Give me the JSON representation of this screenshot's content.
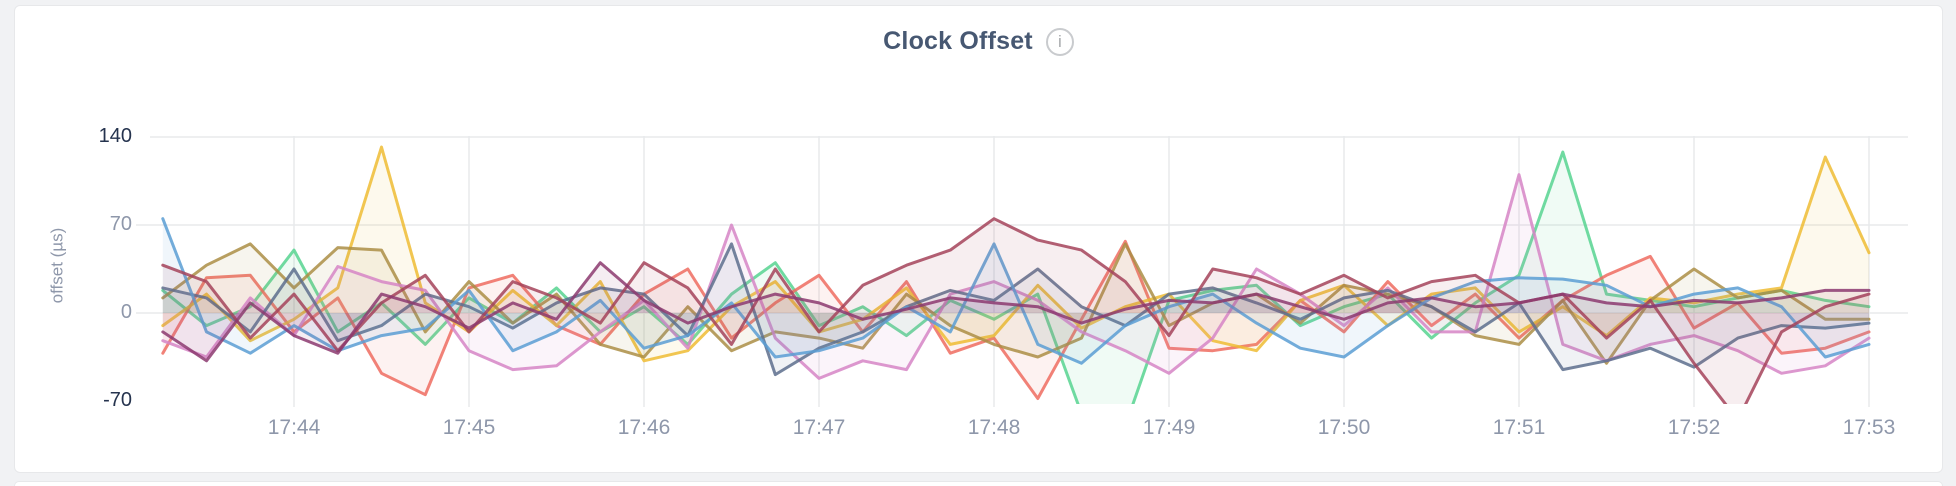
{
  "header": {
    "title": "Clock Offset",
    "info_glyph": "i"
  },
  "theme": {
    "page_bg": "#f1f2f4",
    "card_bg": "#ffffff",
    "card_border": "#e7e8ea",
    "title_color": "#475872",
    "axis_strong": "#25334e",
    "axis_weak": "#8e97aa",
    "grid_color": "#e8eaec",
    "icon_color": "#a7a9ac",
    "icon_border": "#c9cbce"
  },
  "chart_data": {
    "type": "line",
    "title": "Clock Offset",
    "xlabel": "",
    "ylabel": "offset (µs)",
    "y_ticks": [
      140,
      70,
      0,
      -70
    ],
    "ylim": [
      -70,
      140
    ],
    "x_tick_labels": [
      "17:44",
      "17:45",
      "17:46",
      "17:47",
      "17:48",
      "17:49",
      "17:50",
      "17:51",
      "17:52",
      "17:53"
    ],
    "x_unit": "minutes after 17:43",
    "grid": true,
    "legend": "none",
    "x": [
      0.25,
      0.5,
      0.75,
      1,
      1.25,
      1.5,
      1.75,
      2,
      2.25,
      2.5,
      2.75,
      3,
      3.25,
      3.5,
      3.75,
      4,
      4.25,
      4.5,
      4.75,
      5,
      5.25,
      5.5,
      5.75,
      6,
      6.25,
      6.5,
      6.75,
      7,
      7.25,
      7.5,
      7.75,
      8,
      8.25,
      8.5,
      8.75,
      9,
      9.25,
      9.5,
      9.75,
      10
    ],
    "series": [
      {
        "name": "green",
        "color": "#57d491",
        "values": [
          18,
          -10,
          5,
          50,
          -15,
          8,
          -25,
          12,
          -8,
          20,
          -15,
          5,
          -25,
          15,
          40,
          -10,
          5,
          -18,
          10,
          -5,
          15,
          -80,
          -90,
          10,
          18,
          22,
          -10,
          5,
          15,
          -20,
          8,
          30,
          128,
          15,
          10,
          5,
          12,
          18,
          10,
          5
        ]
      },
      {
        "name": "coral",
        "color": "#ee6c60",
        "values": [
          -32,
          28,
          30,
          -15,
          12,
          -48,
          -65,
          20,
          30,
          -10,
          -25,
          15,
          35,
          -20,
          8,
          30,
          -15,
          25,
          -32,
          -20,
          -68,
          -5,
          57,
          -28,
          -30,
          -25,
          10,
          -15,
          25,
          -10,
          15,
          -20,
          10,
          30,
          45,
          -12,
          8,
          -32,
          -28,
          -15
        ]
      },
      {
        "name": "gold",
        "color": "#eebc34",
        "values": [
          -10,
          15,
          -22,
          -5,
          20,
          132,
          8,
          -15,
          18,
          -10,
          25,
          -38,
          -30,
          5,
          25,
          -15,
          -5,
          20,
          -25,
          -18,
          22,
          -12,
          5,
          15,
          -22,
          -30,
          10,
          22,
          -10,
          15,
          20,
          -15,
          5,
          -18,
          12,
          8,
          15,
          20,
          124,
          48
        ]
      },
      {
        "name": "tan",
        "color": "#ab8e45",
        "values": [
          12,
          38,
          55,
          20,
          52,
          50,
          -15,
          25,
          -8,
          15,
          -25,
          -35,
          5,
          -30,
          -15,
          -20,
          -28,
          15,
          -10,
          -25,
          -35,
          -20,
          55,
          -10,
          8,
          15,
          -8,
          22,
          15,
          5,
          -18,
          -25,
          10,
          -40,
          10,
          35,
          12,
          18,
          -5,
          -5
        ]
      },
      {
        "name": "orchid",
        "color": "#d685c5",
        "values": [
          -22,
          -35,
          12,
          -18,
          37,
          25,
          18,
          -30,
          -45,
          -42,
          -15,
          10,
          -28,
          70,
          -20,
          -52,
          -38,
          -45,
          15,
          25,
          10,
          -15,
          -30,
          -48,
          -20,
          35,
          15,
          -10,
          20,
          -15,
          -15,
          110,
          -25,
          -38,
          -25,
          -18,
          -30,
          -48,
          -42,
          -20
        ]
      },
      {
        "name": "slate",
        "color": "#5d6f8d",
        "values": [
          20,
          12,
          -15,
          35,
          -22,
          -10,
          15,
          5,
          -12,
          8,
          20,
          15,
          -18,
          55,
          -49,
          -28,
          -15,
          5,
          18,
          10,
          35,
          5,
          -10,
          15,
          20,
          8,
          -5,
          12,
          18,
          5,
          -15,
          8,
          -45,
          -38,
          -28,
          -43,
          -20,
          -10,
          -12,
          -8
        ]
      },
      {
        "name": "blue",
        "color": "#5b9dd3",
        "values": [
          75,
          -15,
          -32,
          -10,
          -30,
          -18,
          -12,
          18,
          -30,
          -15,
          10,
          -28,
          -18,
          8,
          -35,
          -30,
          -20,
          5,
          -15,
          55,
          -25,
          -40,
          -10,
          5,
          15,
          -8,
          -28,
          -35,
          -10,
          12,
          25,
          28,
          27,
          22,
          5,
          15,
          20,
          5,
          -35,
          -25
        ]
      },
      {
        "name": "wine",
        "color": "#a4435a",
        "values": [
          38,
          25,
          -20,
          15,
          -30,
          8,
          30,
          -15,
          25,
          12,
          -8,
          40,
          20,
          -25,
          35,
          -15,
          22,
          38,
          50,
          75,
          58,
          50,
          25,
          -18,
          35,
          28,
          15,
          30,
          12,
          25,
          30,
          8,
          15,
          -20,
          10,
          -40,
          -85,
          -15,
          5,
          15
        ]
      },
      {
        "name": "plum",
        "color": "#8c3a70",
        "values": [
          -15,
          -38,
          8,
          -18,
          -32,
          15,
          5,
          -12,
          8,
          -5,
          40,
          10,
          -8,
          5,
          15,
          8,
          -5,
          3,
          12,
          8,
          5,
          -8,
          3,
          10,
          8,
          15,
          5,
          -5,
          8,
          12,
          5,
          8,
          15,
          8,
          5,
          10,
          8,
          12,
          18,
          18
        ]
      }
    ]
  }
}
